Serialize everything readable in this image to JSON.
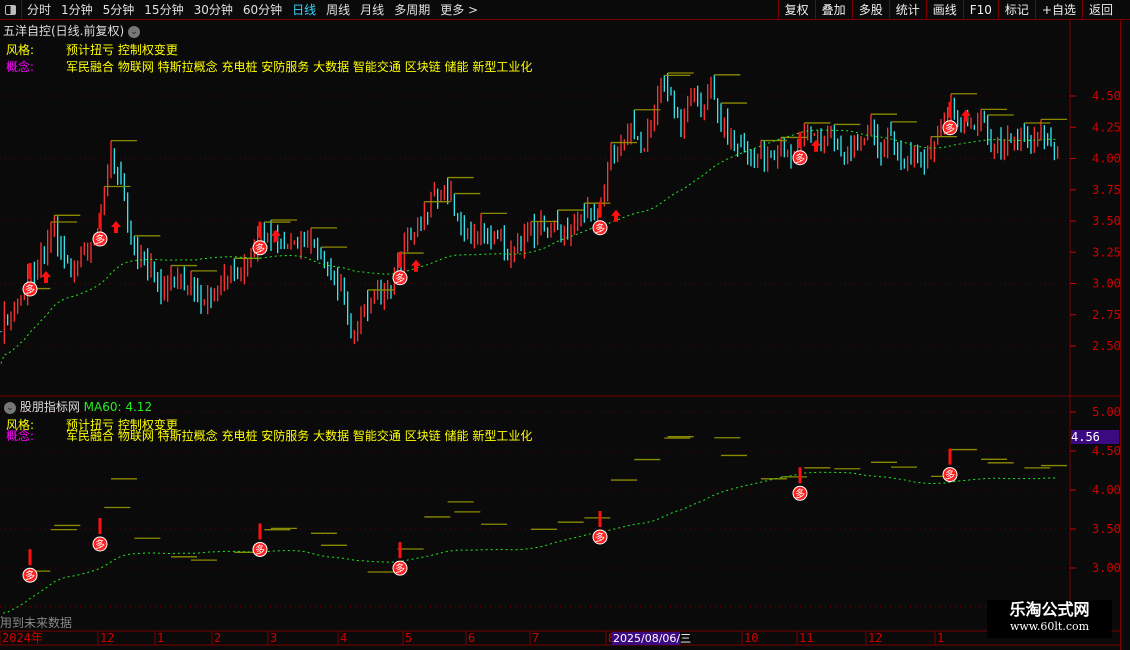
{
  "toolbar": {
    "periods": [
      "分时",
      "1分钟",
      "5分钟",
      "15分钟",
      "30分钟",
      "60分钟",
      "日线",
      "周线",
      "月线",
      "多周期",
      "更多 >"
    ],
    "active": "日线",
    "buttons": [
      "复权",
      "叠加",
      "多股",
      "统计",
      "画线",
      "F10",
      "标记",
      "+自选",
      "返回"
    ]
  },
  "main": {
    "title": "五洋自控(日线.前复权)",
    "style_label": "风格:",
    "style_value": "预计扭亏 控制权变更",
    "concept_label": "概念:",
    "concept_value": "军民融合 物联网 特斯拉概念 充电桩 安防服务 大数据 智能交通 区块链 储能 新型工业化"
  },
  "sub": {
    "title": "股朋指标网",
    "ma_label": "MA60: 4.12",
    "style_label": "风格:",
    "style_value": "预计扭亏 控制权变更",
    "concept_label": "概念:",
    "concept_value": "军民融合 物联网 特斯拉概念 充电桩 安防服务 大数据 智能交通 区块链 储能 新型工业化",
    "warning": "用到未来数据",
    "cursor_price": "4.56"
  },
  "logo": {
    "name": "乐淘公式网",
    "url": "www.60lt.com"
  },
  "colors": {
    "up": "#ff3232",
    "down": "#33e6f0",
    "ma": "#22ee22",
    "resist": "#8a8a00",
    "axis": "#d00000",
    "border": "#7a0000",
    "highlight": "#3c0a80"
  },
  "chart_data": {
    "type": "candlestick-approx",
    "main_yticks": [
      "4.50",
      "4.25",
      "4.00",
      "3.75",
      "3.50",
      "3.25",
      "3.00",
      "2.75",
      "2.50"
    ],
    "sub_yticks": [
      "5.00",
      "4.50",
      "4.00",
      "3.50",
      "3.00"
    ],
    "xticks": [
      "2024年",
      "12",
      "1",
      "2",
      "3",
      "4",
      "5",
      "6",
      "7",
      "8",
      "10",
      "11",
      "12",
      "1"
    ],
    "cursor_date": "2025/08/06/三",
    "closes": [
      2.67,
      2.75,
      2.87,
      3.1,
      3.19,
      3.43,
      3.27,
      3.1,
      3.19,
      3.27,
      3.5,
      4.07,
      3.75,
      3.35,
      3.19,
      3.1,
      2.95,
      3.07,
      3.03,
      2.95,
      2.87,
      2.95,
      2.99,
      3.07,
      3.03,
      3.23,
      3.43,
      3.35,
      3.27,
      3.31,
      3.35,
      3.31,
      3.15,
      3.07,
      2.95,
      2.55,
      2.75,
      2.83,
      2.87,
      2.99,
      3.19,
      3.43,
      3.47,
      3.67,
      3.75,
      3.67,
      3.43,
      3.39,
      3.43,
      3.39,
      3.35,
      3.23,
      3.35,
      3.43,
      3.43,
      3.47,
      3.39,
      3.47,
      3.55,
      3.55,
      3.59,
      4.07,
      4.15,
      4.23,
      4.07,
      4.23,
      4.63,
      4.47,
      4.23,
      4.55,
      4.39,
      4.55,
      4.31,
      4.15,
      4.07,
      4.03,
      3.99,
      4.03,
      4.07,
      3.99,
      4.15,
      4.23,
      4.15,
      4.23,
      4.07,
      3.99,
      4.15,
      4.23,
      4.07,
      4.15,
      3.99,
      4.03,
      3.99,
      4.03,
      4.23,
      4.39,
      4.31,
      4.27,
      4.35,
      4.15,
      4.07,
      4.15,
      4.19,
      4.15,
      4.23,
      4.07,
      4.09
    ],
    "signal_marker": "多",
    "signal_indices": [
      3,
      10,
      26,
      40,
      60,
      80,
      95
    ],
    "ma60_last": 4.12
  }
}
